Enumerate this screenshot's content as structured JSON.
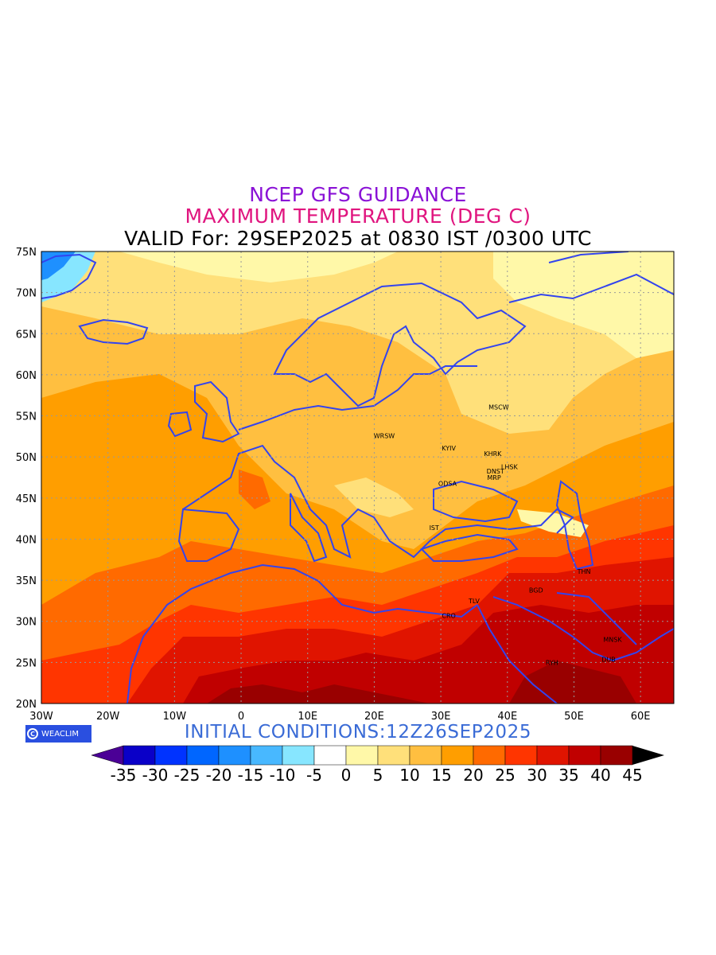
{
  "header": {
    "line1": "NCEP GFS GUIDANCE",
    "line2": "MAXIMUM TEMPERATURE (DEG C)",
    "line3": "VALID For: 29SEP2025 at 0830 IST /0300 UTC"
  },
  "initial_conditions": "INITIAL  CONDITIONS:12Z26SEP2025",
  "logo_text": "WEACLIM",
  "colors": {
    "title1": "#8a12d6",
    "title2": "#e0157f",
    "coast": "#3344ee"
  },
  "map": {
    "lon_ticks": [
      "30W",
      "20W",
      "10W",
      "0",
      "10E",
      "20E",
      "30E",
      "40E",
      "50E",
      "60E"
    ],
    "lat_ticks": [
      "75N",
      "70N",
      "65N",
      "60N",
      "55N",
      "50N",
      "45N",
      "40N",
      "35N",
      "30N",
      "25N",
      "20N"
    ],
    "cities": [
      {
        "name": "MSCW",
        "lon": 38.7,
        "lat": 55.8
      },
      {
        "name": "WRSW",
        "lon": 21.5,
        "lat": 52.3
      },
      {
        "name": "KYIV",
        "lon": 31.2,
        "lat": 50.8
      },
      {
        "name": "KHRK",
        "lon": 37.8,
        "lat": 50.1
      },
      {
        "name": "LHSK",
        "lon": 40.3,
        "lat": 48.5
      },
      {
        "name": "DNST",
        "lon": 38.2,
        "lat": 48.0
      },
      {
        "name": "MRP",
        "lon": 38.0,
        "lat": 47.2
      },
      {
        "name": "ODSA",
        "lon": 31.0,
        "lat": 46.5
      },
      {
        "name": "IST",
        "lon": 29.0,
        "lat": 41.1
      },
      {
        "name": "THN",
        "lon": 51.5,
        "lat": 35.8
      },
      {
        "name": "BGD",
        "lon": 44.3,
        "lat": 33.5
      },
      {
        "name": "TLV",
        "lon": 35.0,
        "lat": 32.2
      },
      {
        "name": "CRO",
        "lon": 31.2,
        "lat": 30.4
      },
      {
        "name": "MNSK",
        "lon": 55.8,
        "lat": 27.5
      },
      {
        "name": "DUB",
        "lon": 55.2,
        "lat": 25.1
      },
      {
        "name": "RYH",
        "lon": 46.7,
        "lat": 24.7
      }
    ]
  },
  "colorbar": {
    "labels": [
      "-35",
      "-30",
      "-25",
      "-20",
      "-15",
      "-10",
      "-5",
      "0",
      "5",
      "10",
      "15",
      "20",
      "25",
      "30",
      "35",
      "40",
      "45"
    ],
    "colors": [
      "#0a00c8",
      "#0033ff",
      "#0066ff",
      "#1e90ff",
      "#48b8ff",
      "#87e6ff",
      "#ffffff",
      "#fff8a8",
      "#ffe07a",
      "#ffbf40",
      "#ff9e00",
      "#ff6a00",
      "#ff3500",
      "#e01400",
      "#c00000",
      "#990000"
    ],
    "low_color": "#4b0096",
    "high_color": "#000000"
  }
}
